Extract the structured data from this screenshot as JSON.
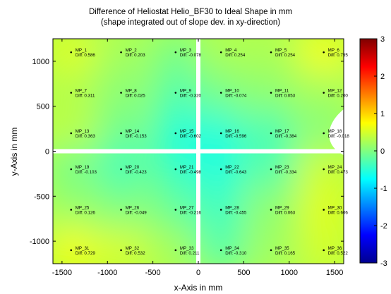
{
  "chart_data": {
    "type": "heatmap",
    "title": "Difference of Heliostat Helio_BF30 to Ideal Shape in mm",
    "subtitle": "(shape integrated out of slope dev. in xy-direction)",
    "xlabel": "x-Axis in mm",
    "ylabel": "y-Axis in mm",
    "xlim": [
      -1600,
      1600
    ],
    "ylim": [
      -1250,
      1250
    ],
    "xticks": [
      -1500,
      -1000,
      -500,
      0,
      500,
      1000,
      1500
    ],
    "yticks": [
      -1000,
      -500,
      0,
      500,
      1000
    ],
    "colorbar": {
      "min": -3,
      "max": 3,
      "ticks": [
        -3,
        -2,
        -1,
        0,
        1,
        2,
        3
      ],
      "colormap": "jet"
    },
    "grid": false,
    "measurement_points": [
      {
        "label": "MP_1",
        "diff_label": "Diff: 0.586",
        "x": -1400,
        "y": 1100,
        "value": 0.586
      },
      {
        "label": "MP_2",
        "diff_label": "Diff: 0.203",
        "x": -850,
        "y": 1100,
        "value": 0.203
      },
      {
        "label": "MP_3",
        "diff_label": "Diff: -0.078",
        "x": -250,
        "y": 1100,
        "value": -0.078
      },
      {
        "label": "MP_4",
        "diff_label": "Diff: 0.254",
        "x": 250,
        "y": 1100,
        "value": 0.254
      },
      {
        "label": "MP_5",
        "diff_label": "Diff: 0.254",
        "x": 800,
        "y": 1100,
        "value": 0.254
      },
      {
        "label": "MP_6",
        "diff_label": "Diff: 0.755",
        "x": 1380,
        "y": 1100,
        "value": 0.755
      },
      {
        "label": "MP_7",
        "diff_label": "Diff: 0.311",
        "x": -1400,
        "y": 650,
        "value": 0.311
      },
      {
        "label": "MP_8",
        "diff_label": "Diff: 0.025",
        "x": -850,
        "y": 650,
        "value": 0.025
      },
      {
        "label": "MP_9",
        "diff_label": "Diff: -0.320",
        "x": -250,
        "y": 650,
        "value": -0.32
      },
      {
        "label": "MP_10",
        "diff_label": "Diff: -0.074",
        "x": 250,
        "y": 650,
        "value": -0.074
      },
      {
        "label": "MP_11",
        "diff_label": "Diff: 0.053",
        "x": 800,
        "y": 650,
        "value": 0.053
      },
      {
        "label": "MP_12",
        "diff_label": "Diff: 0.200",
        "x": 1380,
        "y": 650,
        "value": 0.2
      },
      {
        "label": "MP_13",
        "diff_label": "Diff: 0.363",
        "x": -1400,
        "y": 200,
        "value": 0.363
      },
      {
        "label": "MP_14",
        "diff_label": "Diff: -0.153",
        "x": -850,
        "y": 200,
        "value": -0.153
      },
      {
        "label": "MP_15",
        "diff_label": "Diff: -0.602",
        "x": -250,
        "y": 200,
        "value": -0.602
      },
      {
        "label": "MP_16",
        "diff_label": "Diff: -0.596",
        "x": 250,
        "y": 200,
        "value": -0.596
      },
      {
        "label": "MP_17",
        "diff_label": "Diff: -0.384",
        "x": 800,
        "y": 200,
        "value": -0.384
      },
      {
        "label": "MP_18",
        "diff_label": "Diff: -0.018",
        "x": 1380,
        "y": 200,
        "value": -0.018
      },
      {
        "label": "MP_19",
        "diff_label": "Diff: -0.103",
        "x": -1400,
        "y": -200,
        "value": -0.103
      },
      {
        "label": "MP_20",
        "diff_label": "Diff: -0.423",
        "x": -850,
        "y": -200,
        "value": -0.423
      },
      {
        "label": "MP_21",
        "diff_label": "Diff: -0.498",
        "x": -250,
        "y": -200,
        "value": -0.498
      },
      {
        "label": "MP_22",
        "diff_label": "Diff: -0.643",
        "x": 250,
        "y": -200,
        "value": -0.643
      },
      {
        "label": "MP_23",
        "diff_label": "Diff: -0.334",
        "x": 800,
        "y": -200,
        "value": -0.334
      },
      {
        "label": "MP_24",
        "diff_label": "Diff: 0.473",
        "x": 1380,
        "y": -200,
        "value": 0.473
      },
      {
        "label": "MP_25",
        "diff_label": "Diff: 0.126",
        "x": -1400,
        "y": -650,
        "value": 0.126
      },
      {
        "label": "MP_26",
        "diff_label": "Diff: -0.049",
        "x": -850,
        "y": -650,
        "value": -0.049
      },
      {
        "label": "MP_27",
        "diff_label": "Diff: -0.216",
        "x": -250,
        "y": -650,
        "value": -0.216
      },
      {
        "label": "MP_28",
        "diff_label": "Diff: -0.455",
        "x": 250,
        "y": -650,
        "value": -0.455
      },
      {
        "label": "MP_29",
        "diff_label": "Diff: 0.063",
        "x": 800,
        "y": -650,
        "value": 0.063
      },
      {
        "label": "MP_30",
        "diff_label": "Diff: 0.606",
        "x": 1380,
        "y": -650,
        "value": 0.606
      },
      {
        "label": "MP_31",
        "diff_label": "Diff: 0.729",
        "x": -1400,
        "y": -1100,
        "value": 0.729
      },
      {
        "label": "MP_32",
        "diff_label": "Diff: 0.532",
        "x": -850,
        "y": -1100,
        "value": 0.532
      },
      {
        "label": "MP_33",
        "diff_label": "Diff: 0.211",
        "x": -250,
        "y": -1100,
        "value": 0.211
      },
      {
        "label": "MP_34",
        "diff_label": "Diff: -0.310",
        "x": 250,
        "y": -1100,
        "value": -0.31
      },
      {
        "label": "MP_35",
        "diff_label": "Diff: 0.165",
        "x": 800,
        "y": -1100,
        "value": 0.165
      },
      {
        "label": "MP_36",
        "diff_label": "Diff: 0.522",
        "x": 1380,
        "y": -1100,
        "value": 0.522
      }
    ]
  }
}
